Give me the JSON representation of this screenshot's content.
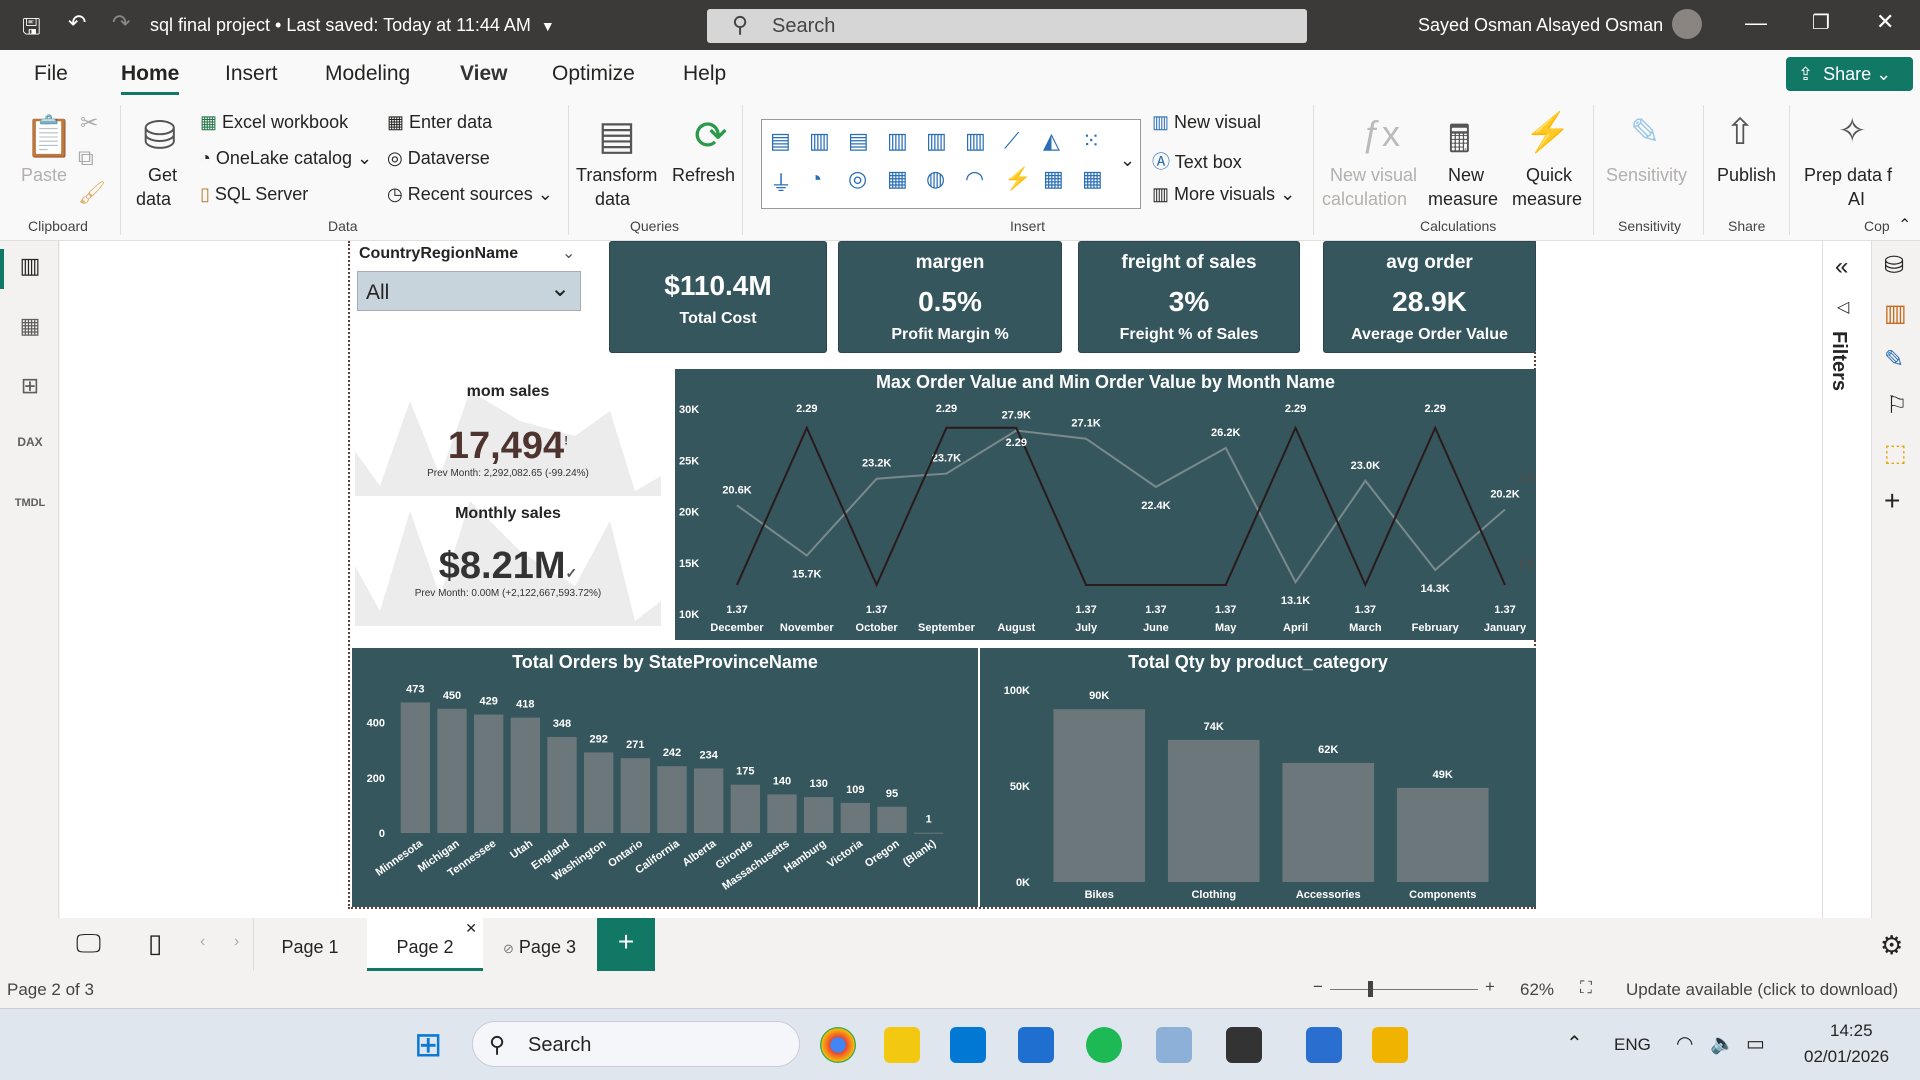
{
  "titlebar": {
    "doc_title": "sql final project • Last saved: Today at 11:44 AM",
    "search": "Search",
    "user": "Sayed Osman Alsayed Osman"
  },
  "menu_tabs": [
    "File",
    "Home",
    "Insert",
    "Modeling",
    "View",
    "Optimize",
    "Help"
  ],
  "share": "Share",
  "ribbon": {
    "paste": "Paste",
    "clipboard": "Clipboard",
    "get_data": "Get",
    "get_data2": "data",
    "excel": "Excel workbook",
    "onelake": "OneLake catalog",
    "sql": "SQL Server",
    "enter_data": "Enter data",
    "dataverse": "Dataverse",
    "recent": "Recent sources",
    "data": "Data",
    "transform": "Transform",
    "transform2": "data",
    "refresh": "Refresh",
    "queries": "Queries",
    "new_visual": "New visual",
    "text_box": "Text box",
    "more_visuals": "More visuals",
    "insert": "Insert",
    "new_visual_calc": "New visual",
    "new_visual_calc2": "calculation",
    "new_measure": "New",
    "new_measure2": "measure",
    "quick_measure": "Quick",
    "quick_measure2": "measure",
    "calculations": "Calculations",
    "sensitivity": "Sensitivity",
    "sensitivity_grp": "Sensitivity",
    "publish": "Publish",
    "share_grp": "Share",
    "prep": "Prep data f",
    "prep2": "AI",
    "copilot": "Cop"
  },
  "slicer": {
    "title": "CountryRegionName",
    "value": "All"
  },
  "cards": [
    {
      "header": "",
      "value": "$110.4M",
      "label": "Total Cost"
    },
    {
      "header": "margen",
      "value": "0.5%",
      "label": "Profit Margin %"
    },
    {
      "header": "freight of sales",
      "value": "3%",
      "label": "Freight % of Sales"
    },
    {
      "header": "avg order",
      "value": "28.9K",
      "label": "Average Order Value"
    }
  ],
  "kpis": [
    {
      "title": "mom sales",
      "value": "17,494",
      "status": "!",
      "prev": "Prev Month: 2,292,082.65 (-99.24%)",
      "color": "#4e342e"
    },
    {
      "title": "Monthly sales",
      "value": "$8.21M",
      "status": "✓",
      "prev": "Prev Month: 0.00M (+2,122,667,593.72%)",
      "color": "#333333"
    }
  ],
  "filters_label": "Filters",
  "pages": [
    "Page 1",
    "Page 2",
    "Page 3"
  ],
  "status": {
    "page": "Page 2 of 3",
    "zoom": "62%",
    "update": "Update available (click to download)"
  },
  "taskbar": {
    "search": "Search",
    "lang": "ENG",
    "time": "14:25",
    "date": "02/01/2026"
  },
  "chart_data": [
    {
      "type": "line",
      "title": "Max Order Value and Min Order Value by Month Name",
      "categories": [
        "December",
        "November",
        "October",
        "September",
        "August",
        "July",
        "June",
        "May",
        "April",
        "March",
        "February",
        "January"
      ],
      "series": [
        {
          "name": "Max Order Value",
          "axis": "left",
          "color": "#7a8a8c",
          "values": [
            20600,
            15700,
            23200,
            23700,
            27900,
            27100,
            22400,
            26200,
            13100,
            23000,
            14300,
            20200
          ],
          "labels": [
            "20.6K",
            "15.7K",
            "23.2K",
            "23.7K",
            "27.9K",
            "27.1K",
            "22.4K",
            "26.2K",
            "13.1K",
            "23.0K",
            "14.3K",
            "20.2K"
          ]
        },
        {
          "name": "Min Order Value",
          "axis": "right",
          "color": "#2a1a1a",
          "values": [
            1.37,
            2.29,
            1.37,
            2.29,
            2.29,
            1.37,
            1.37,
            1.37,
            2.29,
            1.37,
            2.29,
            1.37
          ],
          "labels": [
            "1.37",
            "2.29",
            "1.37",
            "2.29",
            "2.29",
            "1.37",
            "1.37",
            "1.37",
            "2.29",
            "1.37",
            "2.29",
            "1.37"
          ]
        }
      ],
      "ylim": [
        10000,
        30000
      ],
      "yticks": [
        "30K",
        "25K",
        "20K",
        "15K",
        "10K"
      ],
      "y2lim": [
        1.2,
        2.4
      ],
      "y2ticks": [
        "2.0",
        "1.5"
      ]
    },
    {
      "type": "bar",
      "title": "Total Orders by StateProvinceName",
      "categories": [
        "Minnesota",
        "Michigan",
        "Tennessee",
        "Utah",
        "England",
        "Washington",
        "Ontario",
        "California",
        "Alberta",
        "Gironde",
        "Massachusetts",
        "Hamburg",
        "Victoria",
        "Oregon",
        "(Blank)"
      ],
      "values": [
        473,
        450,
        429,
        418,
        348,
        292,
        271,
        242,
        234,
        175,
        140,
        130,
        109,
        95,
        1
      ],
      "ylim": [
        0,
        500
      ],
      "yticks": [
        {
          "v": 0,
          "t": "0"
        },
        {
          "v": 200,
          "t": "200"
        },
        {
          "v": 400,
          "t": "400"
        }
      ]
    },
    {
      "type": "bar",
      "title": "Total Qty by product_category",
      "categories": [
        "Bikes",
        "Clothing",
        "Accessories",
        "Components"
      ],
      "values": [
        90000,
        74000,
        62000,
        49000
      ],
      "labels": [
        "90K",
        "74K",
        "62K",
        "49K"
      ],
      "ylim": [
        0,
        100000
      ],
      "yticks": [
        {
          "v": 0,
          "t": "0K"
        },
        {
          "v": 50000,
          "t": "50K"
        },
        {
          "v": 100000,
          "t": "100K"
        }
      ]
    }
  ]
}
